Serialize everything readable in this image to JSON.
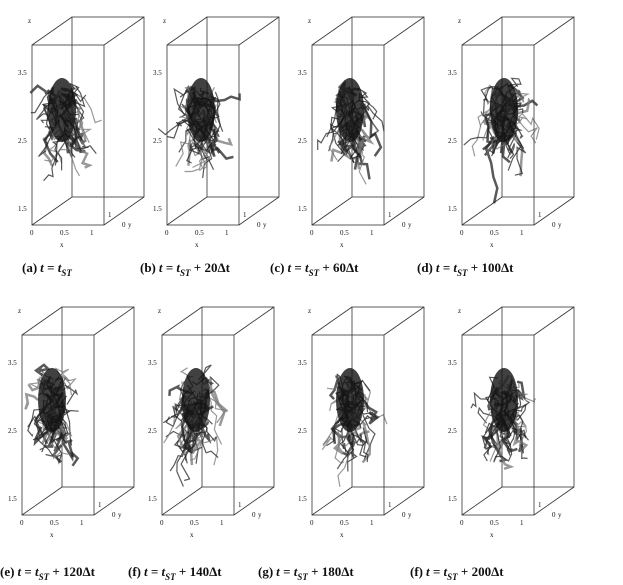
{
  "axes": {
    "z_label": "z",
    "z_ticks": [
      "3.5",
      "2.5",
      "1.5"
    ],
    "x_ticks": [
      "0",
      "0.5",
      "1"
    ],
    "x_label": "x",
    "y_ticks": [
      "1",
      "0"
    ],
    "y_label": "y"
  },
  "panels": [
    {
      "tag": "(a)",
      "expr": "t = t",
      "sub": "ST"
    },
    {
      "tag": "(b)",
      "expr": "t = t",
      "sub": "ST",
      "tail": " + 20Δt"
    },
    {
      "tag": "(c)",
      "expr": "t = t",
      "sub": "ST",
      "tail": " + 60Δt"
    },
    {
      "tag": "(d)",
      "expr": "t = t",
      "sub": "ST",
      "tail": " + 100Δt"
    },
    {
      "tag": "(e)",
      "expr": "t = t",
      "sub": "ST",
      "tail": " + 120Δt"
    },
    {
      "tag": "(f)",
      "expr": "t = t",
      "sub": "ST",
      "tail": " + 140Δt"
    },
    {
      "tag": "(g)",
      "expr": "t = t",
      "sub": "ST",
      "tail": " + 180Δt"
    },
    {
      "tag": "(f)",
      "expr": "t = t",
      "sub": "ST",
      "tail": " + 200Δt"
    }
  ]
}
